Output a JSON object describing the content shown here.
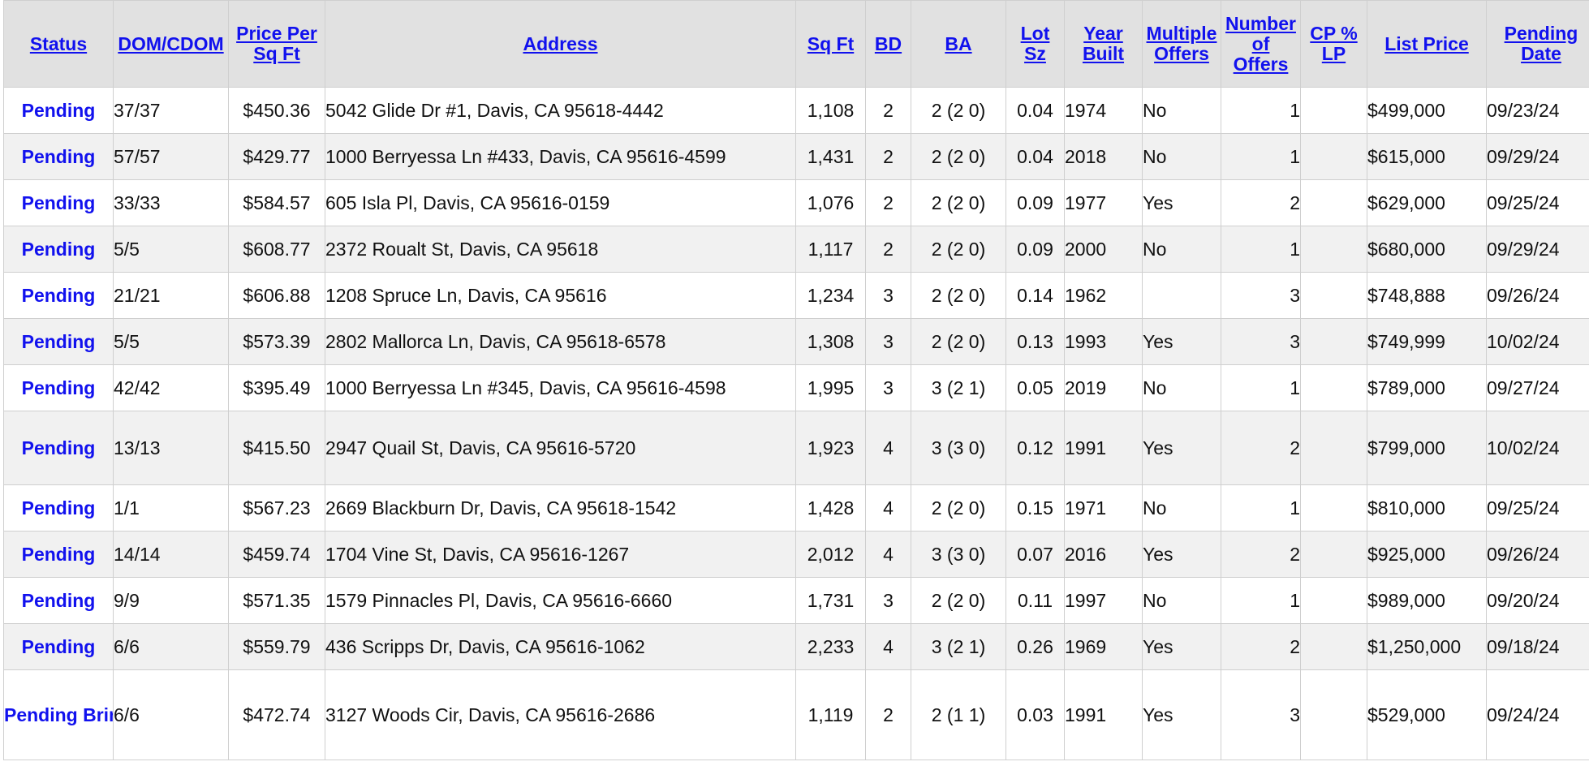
{
  "columns": [
    {
      "key": "status",
      "label": "Status"
    },
    {
      "key": "dom",
      "label": "DOM/CDOM"
    },
    {
      "key": "ppsf",
      "label": "Price Per Sq Ft"
    },
    {
      "key": "address",
      "label": "Address"
    },
    {
      "key": "sqft",
      "label": "Sq Ft"
    },
    {
      "key": "bd",
      "label": "BD"
    },
    {
      "key": "ba",
      "label": "BA"
    },
    {
      "key": "lot",
      "label": "Lot Sz"
    },
    {
      "key": "year",
      "label": "Year Built"
    },
    {
      "key": "multi",
      "label": "Multiple Offers"
    },
    {
      "key": "offers",
      "label": "Number of Offers"
    },
    {
      "key": "cplp",
      "label": "CP % LP"
    },
    {
      "key": "list",
      "label": "List Price"
    },
    {
      "key": "pending",
      "label": "Pending Date"
    }
  ],
  "rows": [
    {
      "status": "Pending",
      "dom": "37/37",
      "ppsf": "$450.36",
      "address": "5042 Glide Dr #1, Davis, CA 95618-4442",
      "sqft": "1,108",
      "bd": "2",
      "ba": "2 (2 0)",
      "lot": "0.04",
      "year": "1974",
      "multi": "No",
      "offers": "1",
      "cplp": "",
      "list": "$499,000",
      "pending": "09/23/24"
    },
    {
      "status": "Pending",
      "dom": "57/57",
      "ppsf": "$429.77",
      "address": "1000 Berryessa Ln #433, Davis, CA 95616-4599",
      "sqft": "1,431",
      "bd": "2",
      "ba": "2 (2 0)",
      "lot": "0.04",
      "year": "2018",
      "multi": "No",
      "offers": "1",
      "cplp": "",
      "list": "$615,000",
      "pending": "09/29/24"
    },
    {
      "status": "Pending",
      "dom": "33/33",
      "ppsf": "$584.57",
      "address": "605 Isla Pl, Davis, CA 95616-0159",
      "sqft": "1,076",
      "bd": "2",
      "ba": "2 (2 0)",
      "lot": "0.09",
      "year": "1977",
      "multi": "Yes",
      "offers": "2",
      "cplp": "",
      "list": "$629,000",
      "pending": "09/25/24"
    },
    {
      "status": "Pending",
      "dom": "5/5",
      "ppsf": "$608.77",
      "address": "2372 Roualt St, Davis, CA 95618",
      "sqft": "1,117",
      "bd": "2",
      "ba": "2 (2 0)",
      "lot": "0.09",
      "year": "2000",
      "multi": "No",
      "offers": "1",
      "cplp": "",
      "list": "$680,000",
      "pending": "09/29/24"
    },
    {
      "status": "Pending",
      "dom": "21/21",
      "ppsf": "$606.88",
      "address": "1208 Spruce Ln, Davis, CA 95616",
      "sqft": "1,234",
      "bd": "3",
      "ba": "2 (2 0)",
      "lot": "0.14",
      "year": "1962",
      "multi": "",
      "offers": "3",
      "cplp": "",
      "list": "$748,888",
      "pending": "09/26/24"
    },
    {
      "status": "Pending",
      "dom": "5/5",
      "ppsf": "$573.39",
      "address": "2802 Mallorca Ln, Davis, CA 95618-6578",
      "sqft": "1,308",
      "bd": "3",
      "ba": "2 (2 0)",
      "lot": "0.13",
      "year": "1993",
      "multi": "Yes",
      "offers": "3",
      "cplp": "",
      "list": "$749,999",
      "pending": "10/02/24"
    },
    {
      "status": "Pending",
      "dom": "42/42",
      "ppsf": "$395.49",
      "address": "1000 Berryessa Ln #345, Davis, CA 95616-4598",
      "sqft": "1,995",
      "bd": "3",
      "ba": "3 (2 1)",
      "lot": "0.05",
      "year": "2019",
      "multi": "No",
      "offers": "1",
      "cplp": "",
      "list": "$789,000",
      "pending": "09/27/24"
    },
    {
      "status": "Pending",
      "dom": "13/13",
      "ppsf": "$415.50",
      "address": "2947 Quail St, Davis, CA 95616-5720",
      "sqft": "1,923",
      "bd": "4",
      "ba": "3 (3 0)",
      "lot": "0.12",
      "year": "1991",
      "multi": "Yes",
      "offers": "2",
      "cplp": "",
      "list": "$799,000",
      "pending": "10/02/24"
    },
    {
      "status": "Pending",
      "dom": "1/1",
      "ppsf": "$567.23",
      "address": "2669 Blackburn Dr, Davis, CA 95618-1542",
      "sqft": "1,428",
      "bd": "4",
      "ba": "2 (2 0)",
      "lot": "0.15",
      "year": "1971",
      "multi": "No",
      "offers": "1",
      "cplp": "",
      "list": "$810,000",
      "pending": "09/25/24"
    },
    {
      "status": "Pending",
      "dom": "14/14",
      "ppsf": "$459.74",
      "address": "1704 Vine St, Davis, CA 95616-1267",
      "sqft": "2,012",
      "bd": "4",
      "ba": "3 (3 0)",
      "lot": "0.07",
      "year": "2016",
      "multi": "Yes",
      "offers": "2",
      "cplp": "",
      "list": "$925,000",
      "pending": "09/26/24"
    },
    {
      "status": "Pending",
      "dom": "9/9",
      "ppsf": "$571.35",
      "address": "1579 Pinnacles Pl, Davis, CA 95616-6660",
      "sqft": "1,731",
      "bd": "3",
      "ba": "2 (2 0)",
      "lot": "0.11",
      "year": "1997",
      "multi": "No",
      "offers": "1",
      "cplp": "",
      "list": "$989,000",
      "pending": "09/20/24"
    },
    {
      "status": "Pending",
      "dom": "6/6",
      "ppsf": "$559.79",
      "address": "436 Scripps Dr, Davis, CA 95616-1062",
      "sqft": "2,233",
      "bd": "4",
      "ba": "3 (2 1)",
      "lot": "0.26",
      "year": "1969",
      "multi": "Yes",
      "offers": "2",
      "cplp": "",
      "list": "$1,250,000",
      "pending": "09/18/24"
    },
    {
      "status": "Pending Bring Backup",
      "dom": "6/6",
      "ppsf": "$472.74",
      "address": "3127 Woods Cir, Davis, CA 95616-2686",
      "sqft": "1,119",
      "bd": "2",
      "ba": "2 (1 1)",
      "lot": "0.03",
      "year": "1991",
      "multi": "Yes",
      "offers": "3",
      "cplp": "",
      "list": "$529,000",
      "pending": "09/24/24"
    }
  ],
  "colors": {
    "link": "#1111ee",
    "header_bg": "#e1e1e1",
    "row_alt_bg": "#f1f1f1",
    "border": "#cfcfcf"
  }
}
